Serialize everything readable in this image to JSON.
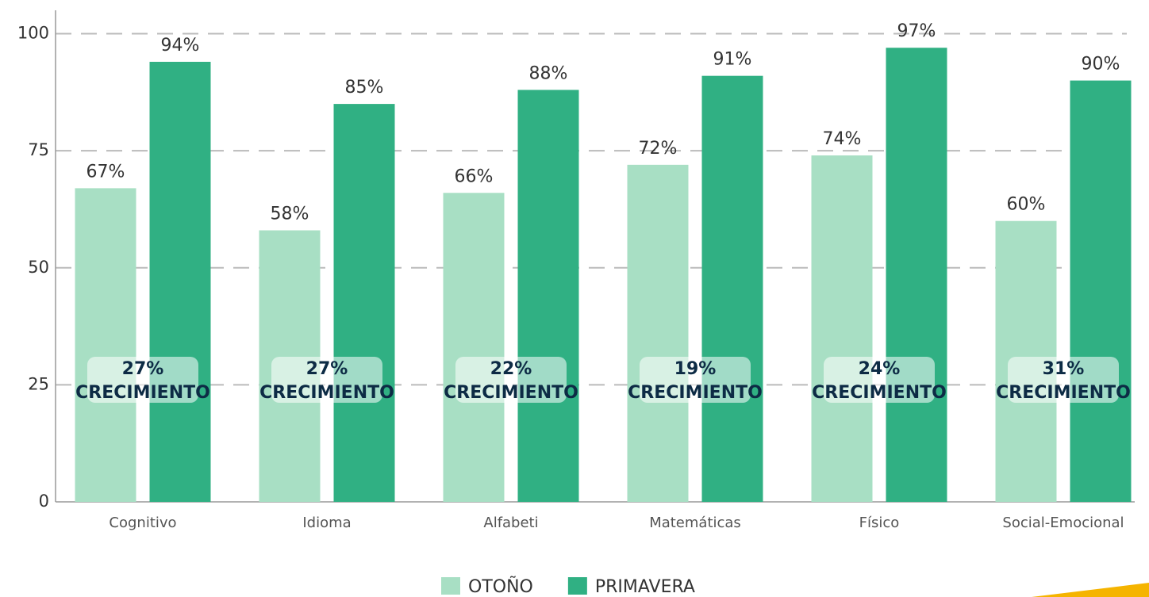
{
  "chart_data": {
    "type": "bar",
    "categories": [
      "Cognitivo",
      "Idioma",
      "Alfabeti",
      "Matemáticas",
      "Físico",
      "Social-Emocional"
    ],
    "series": [
      {
        "name": "OTOÑO",
        "color": "#a8dfc4",
        "values": [
          67,
          58,
          66,
          72,
          74,
          60
        ],
        "value_labels": [
          "67%",
          "58%",
          "66%",
          "72%",
          "74%",
          "60%"
        ]
      },
      {
        "name": "PRIMAVERA",
        "color": "#30b083",
        "values": [
          94,
          85,
          88,
          91,
          97,
          90
        ],
        "value_labels": [
          "94%",
          "85%",
          "88%",
          "91%",
          "97%",
          "90%"
        ]
      }
    ],
    "annotations": [
      [
        "27%",
        "CRECIMIENTO"
      ],
      [
        "27%",
        "CRECIMIENTO"
      ],
      [
        "22%",
        "CRECIMIENTO"
      ],
      [
        "19%",
        "CRECIMIENTO"
      ],
      [
        "24%",
        "CRECIMIENTO"
      ],
      [
        "31%",
        "CRECIMIENTO"
      ]
    ],
    "ylim": [
      0,
      105
    ],
    "yticks": [
      0,
      25,
      50,
      75,
      100
    ],
    "grid": true,
    "legend": "bottom"
  }
}
